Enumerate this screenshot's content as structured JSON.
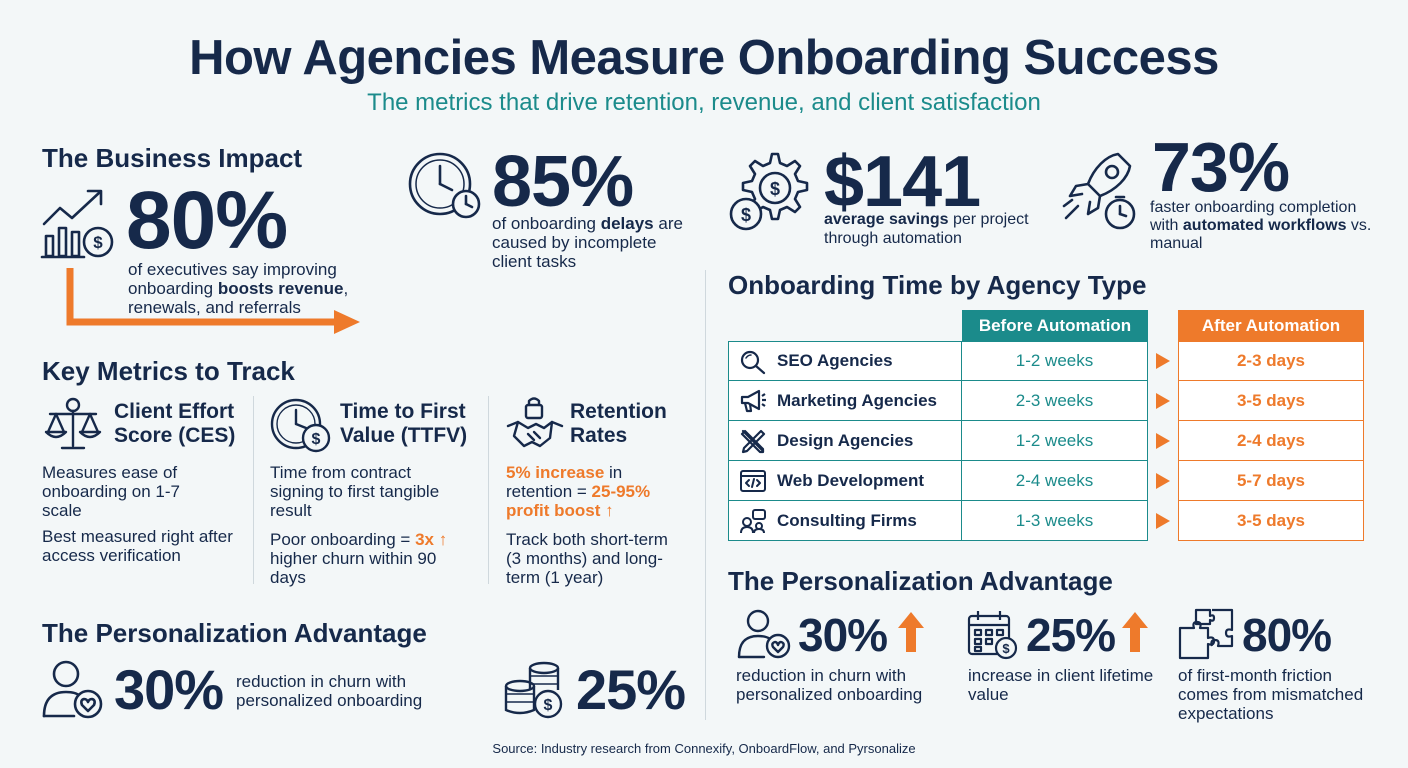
{
  "header": {
    "title": "How Agencies Measure Onboarding Success",
    "subtitle": "The metrics that drive retention, revenue, and client satisfaction"
  },
  "business_impact": {
    "section_title": "The Business Impact",
    "stat_value": "80%",
    "stat_text_1": "of executives say improving onboarding ",
    "stat_bold": "boosts revenue",
    "stat_text_2": ", renewals, and referrals"
  },
  "top_stats": [
    {
      "value": "85%",
      "text_1": "of onboarding ",
      "bold": "delays",
      "text_2": " are caused by incomplete client tasks"
    },
    {
      "value": "$141",
      "bold": "average savings",
      "text_2": " per project through automation"
    },
    {
      "value": "73%",
      "text_1": "faster onboarding completion with ",
      "bold": "automated workflows",
      "text_2": " vs. manual"
    }
  ],
  "key_metrics": {
    "section_title": "Key Metrics to Track",
    "items": [
      {
        "title": "Client Effort Score (CES)",
        "p1": "Measures ease of onboarding on 1-7 scale",
        "p2": "Best measured right after access verification"
      },
      {
        "title": "Time to First Value (TTFV)",
        "p1": "Time from contract signing to first tangible result",
        "p2_pre": "Poor onboarding = ",
        "p2_highlight": "3x",
        "p2_post": "higher churn within 90 days"
      },
      {
        "title": "Retention Rates",
        "p1_highlight": "5% increase",
        "p1_mid": " in retention = ",
        "p1_highlight_2": "25-95% profit boost",
        "p2": "Track both short-term (3 months) and long-term (1 year)"
      }
    ]
  },
  "personalization_left": {
    "section_title": "The Personalization Advantage",
    "stat_1_value": "30%",
    "stat_1_text": "reduction in churn with personalized onboarding",
    "stat_2_value": "25%"
  },
  "agency_table": {
    "section_title": "Onboarding Time by Agency Type",
    "col_before": "Before Automation",
    "col_after": "After Automation",
    "rows": [
      {
        "name": "SEO Agencies",
        "before": "1-2 weeks",
        "after": "2-3 days",
        "icon": "magnifier-icon"
      },
      {
        "name": "Marketing Agencies",
        "before": "2-3 weeks",
        "after": "3-5 days",
        "icon": "megaphone-icon"
      },
      {
        "name": "Design Agencies",
        "before": "1-2 weeks",
        "after": "2-4 days",
        "icon": "design-tools-icon"
      },
      {
        "name": "Web Development",
        "before": "2-4 weeks",
        "after": "5-7 days",
        "icon": "code-window-icon"
      },
      {
        "name": "Consulting Firms",
        "before": "1-3 weeks",
        "after": "3-5 days",
        "icon": "consulting-icon"
      }
    ]
  },
  "personalization_right": {
    "section_title": "The Personalization Advantage",
    "items": [
      {
        "value": "30%",
        "text": "reduction in churn with personalized onboarding"
      },
      {
        "value": "25%",
        "text": "increase in client lifetime value"
      },
      {
        "value": "80%",
        "text": "of first-month friction comes from mismatched expectations"
      }
    ]
  },
  "footer": {
    "source": "Source: Industry research from Connexify, OnboardFlow, and Pyrsonalize"
  },
  "colors": {
    "navy": "#16294a",
    "teal": "#1b8b8b",
    "orange": "#ee7a2b",
    "background": "#f3f7f8"
  }
}
